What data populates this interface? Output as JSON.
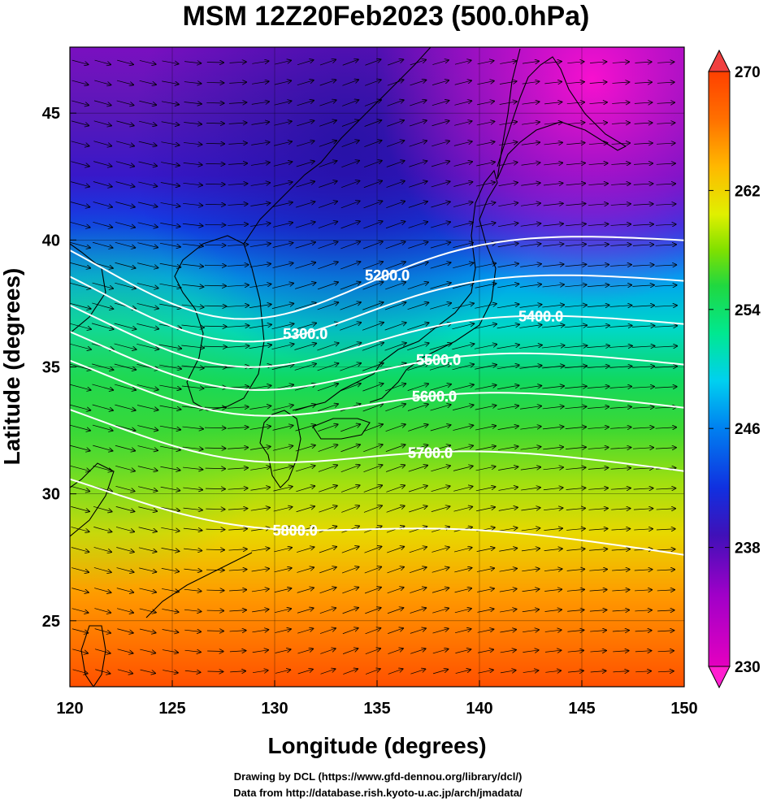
{
  "title": "MSM 12Z20Feb2023 (500.0hPa)",
  "axes": {
    "xlabel": "Longitude (degrees)",
    "ylabel": "Latitude  (degrees)",
    "x_ticks": [
      "120",
      "125",
      "130",
      "135",
      "140",
      "145",
      "150"
    ],
    "y_ticks": [
      "25",
      "30",
      "35",
      "40",
      "45"
    ],
    "xlim": [
      120,
      150
    ],
    "ylim": [
      22.4,
      47.6
    ]
  },
  "colorbar": {
    "ticks": [
      "230",
      "238",
      "246",
      "254",
      "262",
      "270"
    ],
    "range": [
      230,
      270
    ],
    "colors": [
      "#ff00cc",
      "#9900cc",
      "#3333cc",
      "#0033ff",
      "#0099ff",
      "#00e5ff",
      "#00ff99",
      "#00dd33",
      "#99ff00",
      "#ffff00",
      "#ffcc00",
      "#ff9900",
      "#ff6600",
      "#ff3300"
    ]
  },
  "contours": [
    {
      "label": "5200.0",
      "lat_at_150": 40.0
    },
    {
      "label": "5300.0",
      "lat_at_150": 38.4
    },
    {
      "label": "5400.0",
      "lat_at_150": 36.7
    },
    {
      "label": "5500.0",
      "lat_at_150": 35.1
    },
    {
      "label": "5600.0",
      "lat_at_150": 33.4
    },
    {
      "label": "5700.0",
      "lat_at_150": 30.9
    },
    {
      "label": "5800.0",
      "lat_at_150": 27.6
    }
  ],
  "credits": {
    "line1": "Drawing by DCL (https://www.gfd-dennou.org/library/dcl/)",
    "line2": "Data from http://database.rish.kyoto-u.ac.jp/arch/jmadata/"
  }
}
